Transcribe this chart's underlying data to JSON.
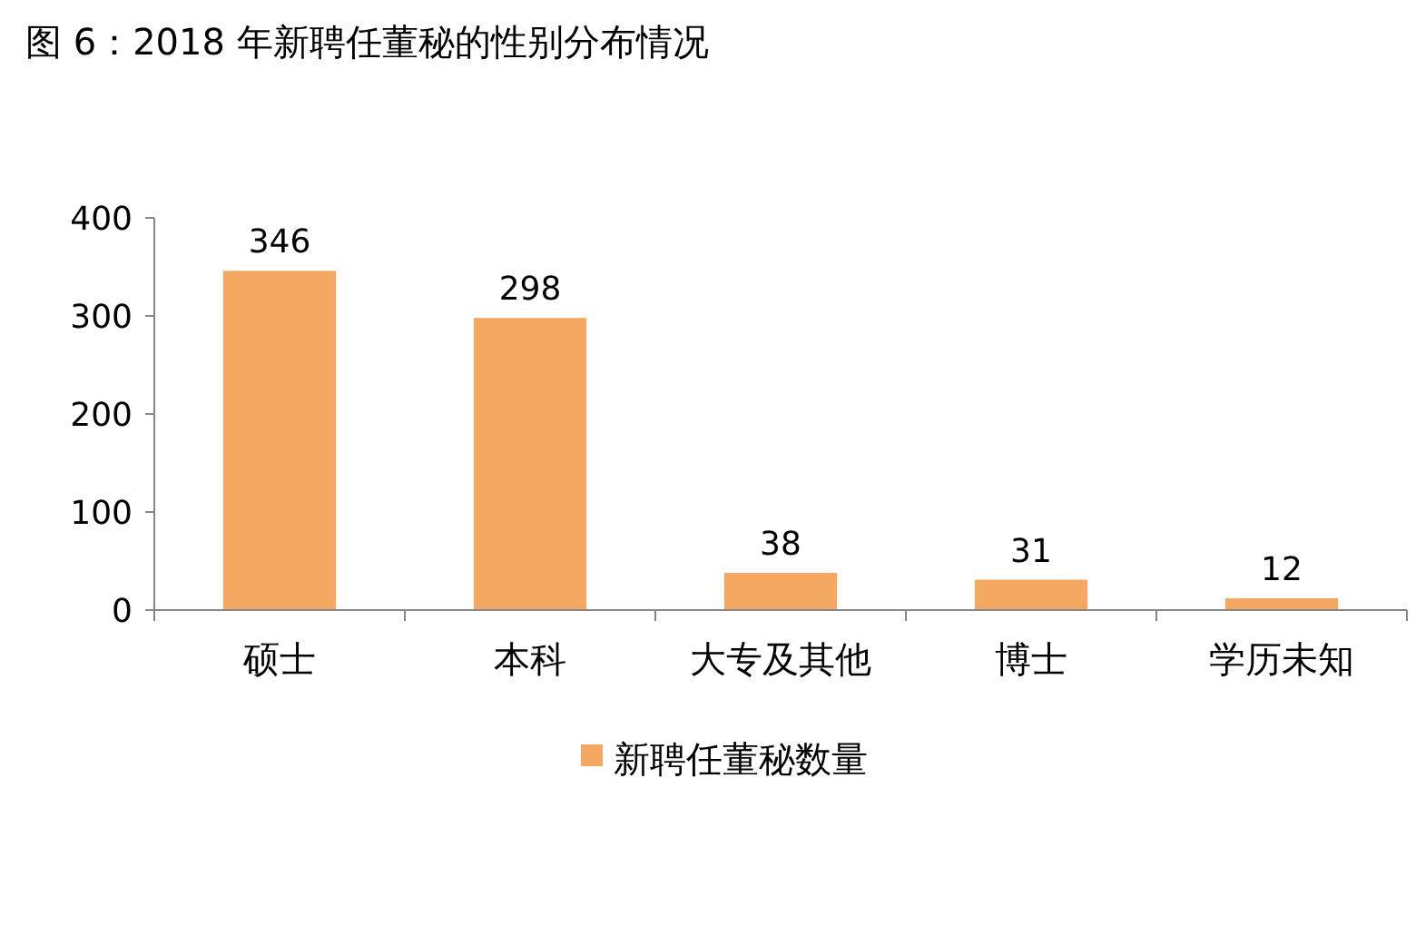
{
  "chart_data": {
    "type": "bar",
    "title": "图 6：2018 年新聘任董秘的性别分布情况",
    "categories": [
      "硕士",
      "本科",
      "大专及其他",
      "博士",
      "学历未知"
    ],
    "series": [
      {
        "name": "新聘任董秘数量",
        "color": "#f5a862",
        "values": [
          346,
          298,
          38,
          31,
          12
        ]
      }
    ],
    "ylim": [
      0,
      400
    ],
    "yticks": [
      0,
      100,
      200,
      300,
      400
    ],
    "grid": false,
    "legend": "bottom",
    "data_labels": true
  }
}
